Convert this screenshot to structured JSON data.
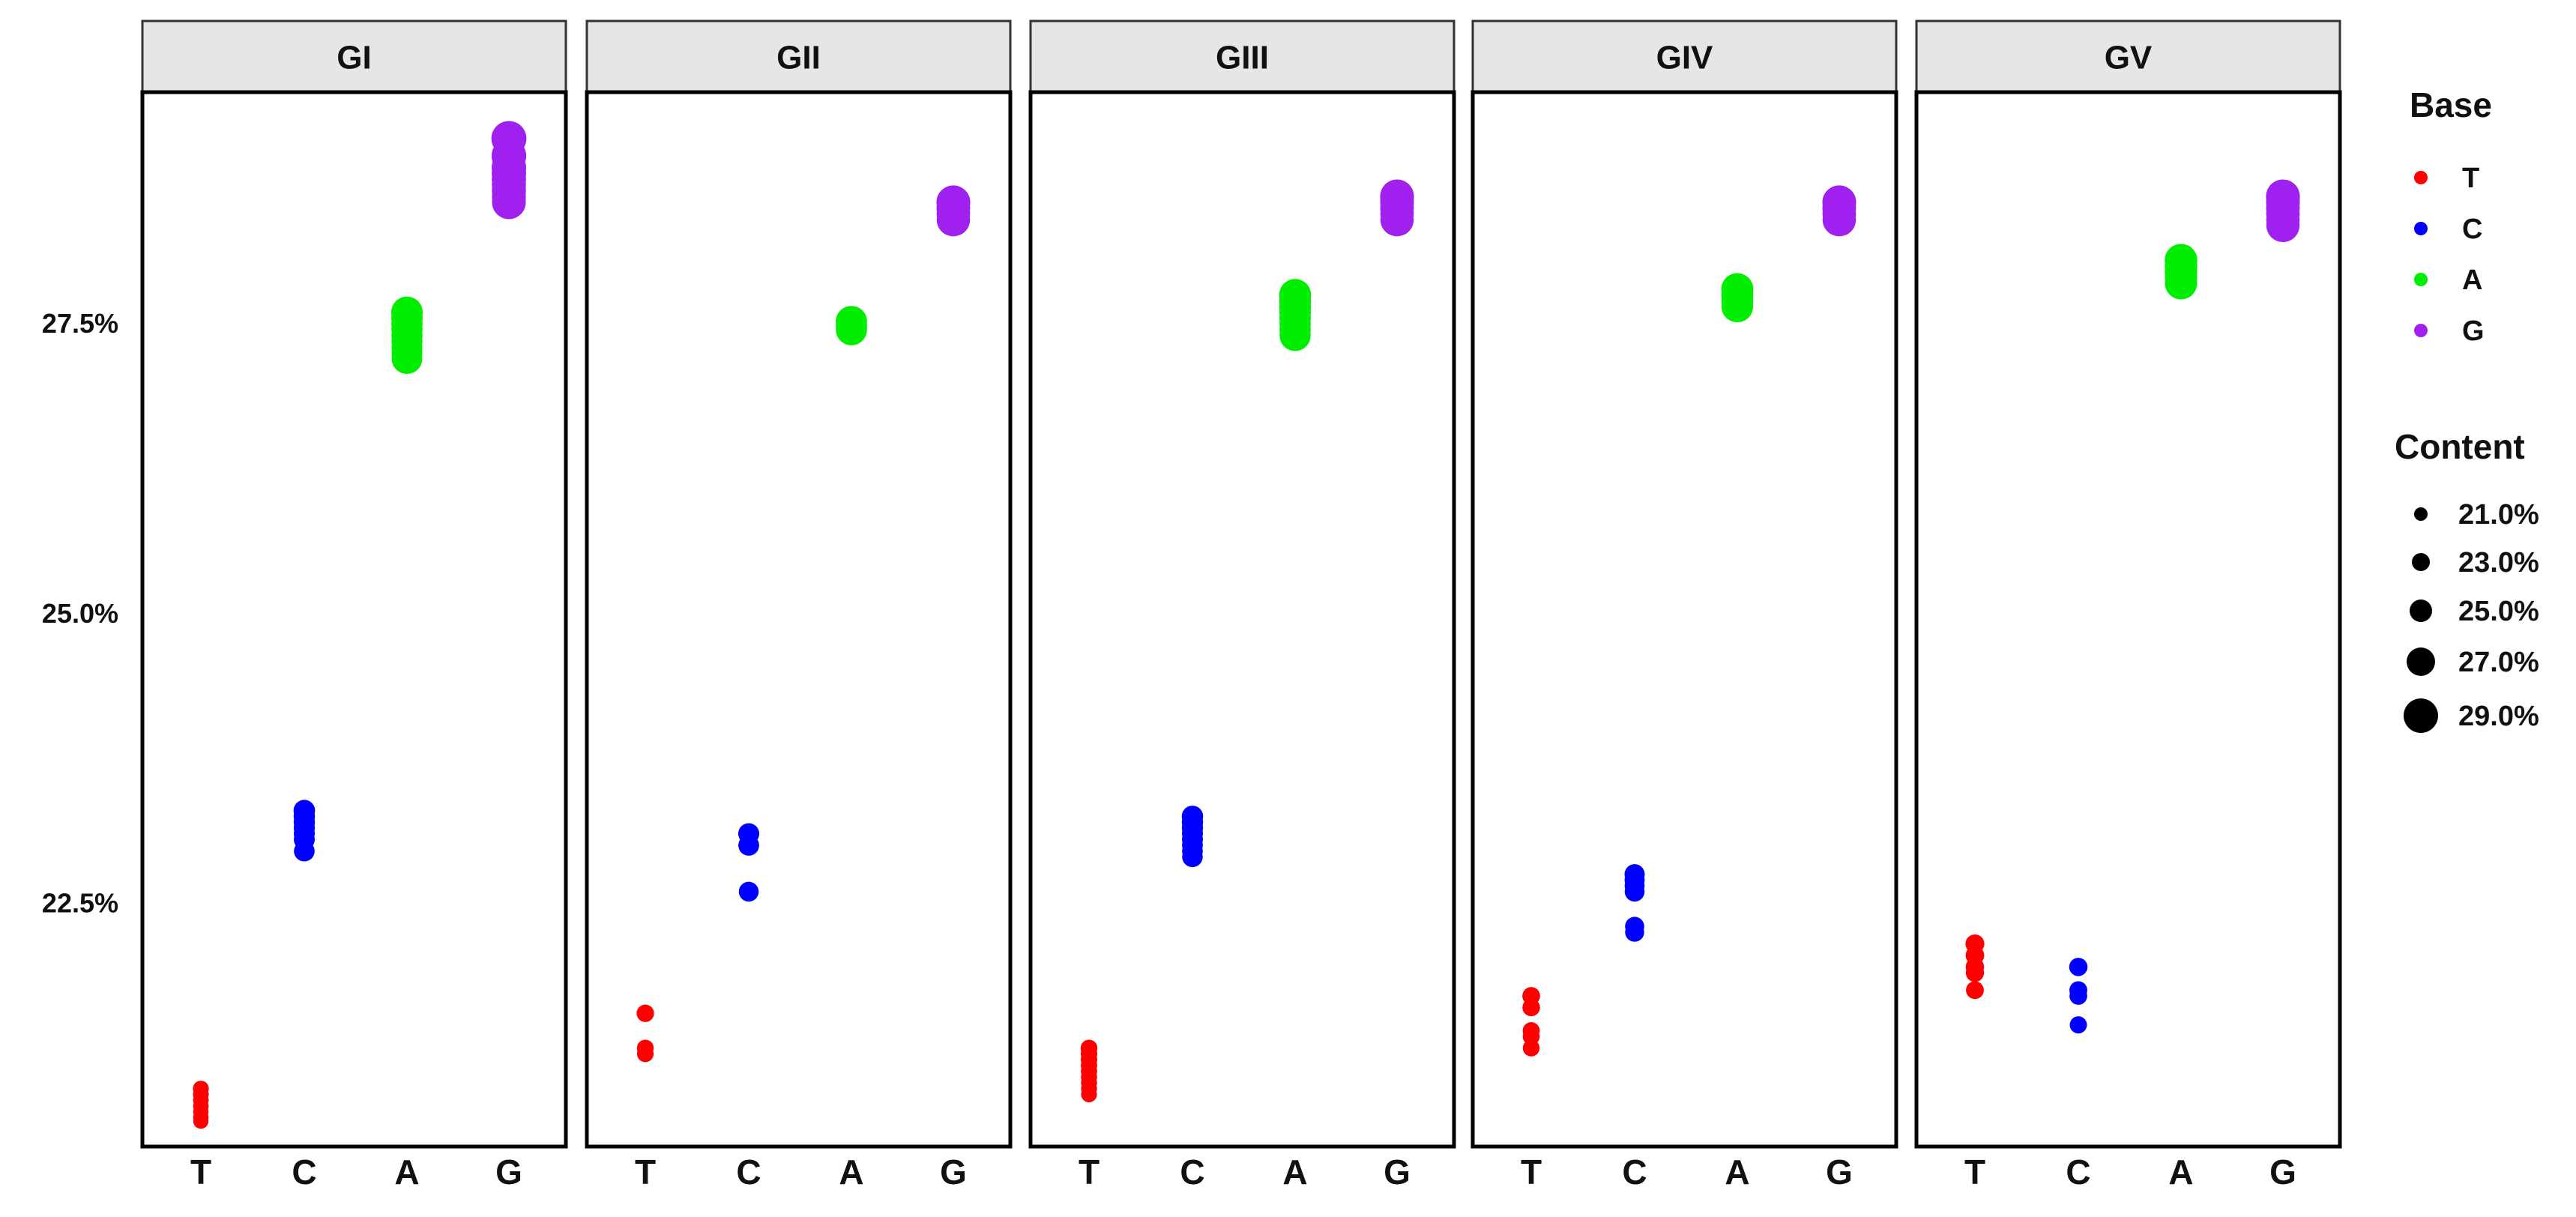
{
  "chart_data": {
    "type": "scatter",
    "facets": [
      "GI",
      "GII",
      "GIII",
      "GIV",
      "GV"
    ],
    "categories": [
      "T",
      "C",
      "A",
      "G"
    ],
    "y_tick_labels": [
      "22.5%",
      "25.0%",
      "27.5%"
    ],
    "y_ticks": [
      22.5,
      25.0,
      27.5
    ],
    "ylim": [
      20.4,
      29.5
    ],
    "grid": false,
    "legend": {
      "placement": "right",
      "base_title": "Base",
      "base_entries": [
        {
          "label": "T",
          "color": "#ff0000"
        },
        {
          "label": "C",
          "color": "#0000ff"
        },
        {
          "label": "A",
          "color": "#00ee00"
        },
        {
          "label": "G",
          "color": "#a020f0"
        }
      ],
      "content_title": "Content",
      "content_entries": [
        {
          "label": "21.0%",
          "value": 21.0
        },
        {
          "label": "23.0%",
          "value": 23.0
        },
        {
          "label": "25.0%",
          "value": 25.0
        },
        {
          "label": "27.0%",
          "value": 27.0
        },
        {
          "label": "29.0%",
          "value": 29.0
        }
      ]
    },
    "series": [
      {
        "name": "GI",
        "points": {
          "T": [
            20.9,
            20.85,
            20.8,
            20.75,
            20.7,
            20.65,
            20.62
          ],
          "C": [
            23.3,
            23.25,
            23.2,
            23.15,
            23.1,
            23.05,
            22.95
          ],
          "A": [
            27.6,
            27.55,
            27.5,
            27.45,
            27.4,
            27.35,
            27.3,
            27.25,
            27.2
          ],
          "G": [
            29.1,
            28.95,
            28.85,
            28.8,
            28.75,
            28.7,
            28.65,
            28.6,
            28.55
          ]
        }
      },
      {
        "name": "GII",
        "points": {
          "T": [
            21.55,
            21.25,
            21.2
          ],
          "C": [
            23.1,
            23.0,
            22.6
          ],
          "A": [
            27.52,
            27.48,
            27.45
          ],
          "G": [
            28.55,
            28.5,
            28.45,
            28.4
          ]
        }
      },
      {
        "name": "GIII",
        "points": {
          "T": [
            21.25,
            21.2,
            21.15,
            21.1,
            21.05,
            21.0,
            20.95,
            20.9,
            20.85
          ],
          "C": [
            23.25,
            23.2,
            23.15,
            23.1,
            23.05,
            23.0,
            22.95,
            22.9
          ],
          "A": [
            27.75,
            27.7,
            27.65,
            27.6,
            27.55,
            27.5,
            27.45,
            27.4
          ],
          "G": [
            28.6,
            28.55,
            28.5,
            28.45,
            28.4
          ]
        }
      },
      {
        "name": "GIV",
        "points": {
          "T": [
            21.7,
            21.6,
            21.4,
            21.35,
            21.25
          ],
          "C": [
            22.75,
            22.7,
            22.65,
            22.6,
            22.3,
            22.25
          ],
          "A": [
            27.8,
            27.75,
            27.7,
            27.65
          ],
          "G": [
            28.55,
            28.5,
            28.45,
            28.4
          ]
        }
      },
      {
        "name": "GV",
        "points": {
          "T": [
            22.15,
            22.05,
            21.95,
            21.9,
            21.75
          ],
          "C": [
            21.95,
            21.75,
            21.7,
            21.45
          ],
          "A": [
            28.05,
            28.0,
            27.95,
            27.9,
            27.85
          ],
          "G": [
            28.6,
            28.55,
            28.5,
            28.45,
            28.4,
            28.35
          ]
        }
      }
    ]
  }
}
